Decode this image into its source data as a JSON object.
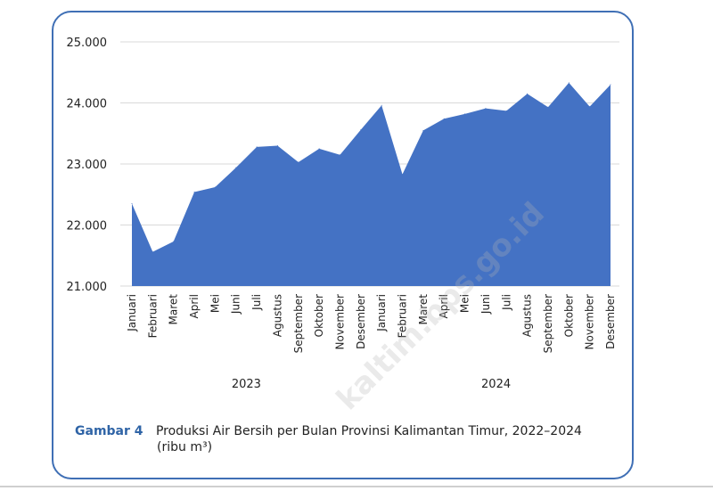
{
  "figure": {
    "label": "Gambar 4",
    "title": "Produksi Air Bersih per Bulan Provinsi Kalimantan Timur, 2022–2024",
    "unit": "(ribu m³)"
  },
  "watermark": "kaltim.bps.go.id",
  "colors": {
    "area": "#4472c4",
    "border": "#3f6fb5",
    "grid": "#d9d9d9",
    "label_blue": "#2f64a6"
  },
  "chart_data": {
    "type": "area",
    "categories": [
      "Januari",
      "Februari",
      "Maret",
      "April",
      "Mei",
      "Juni",
      "Juli",
      "Agustus",
      "September",
      "Oktober",
      "November",
      "Desember",
      "Januari",
      "Februari",
      "Maret",
      "April",
      "Mei",
      "Juni",
      "Juli",
      "Agustus",
      "September",
      "Oktober",
      "November",
      "Desember"
    ],
    "years": [
      {
        "label": "2023",
        "start_index": 0,
        "end_index": 11
      },
      {
        "label": "2024",
        "start_index": 12,
        "end_index": 23
      }
    ],
    "series": [
      {
        "values": [
          22350,
          21560,
          21730,
          22540,
          22620,
          22940,
          23280,
          23300,
          23030,
          23250,
          23150,
          23560,
          23960,
          22830,
          23550,
          23740,
          23820,
          23910,
          23870,
          24150,
          23930,
          24330,
          23940,
          24300
        ]
      }
    ],
    "ylim": [
      21000,
      25000
    ],
    "yticks": [
      21000,
      22000,
      23000,
      24000,
      25000
    ],
    "ytick_labels": [
      "21.000",
      "22.000",
      "23.000",
      "24.000",
      "25.000"
    ],
    "grid": true
  }
}
